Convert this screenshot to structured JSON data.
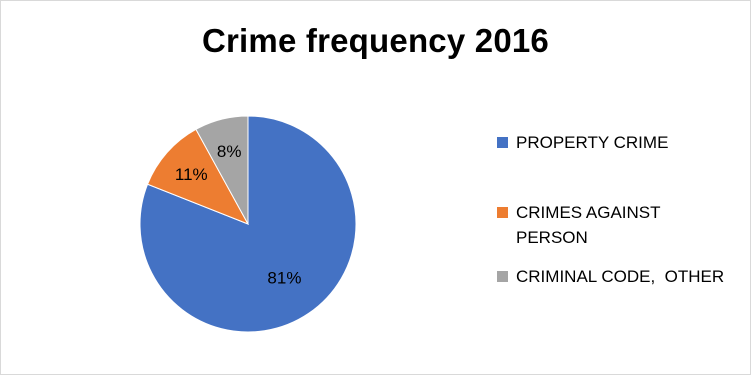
{
  "chart_data": {
    "type": "pie",
    "title": "Crime frequency 2016",
    "legend_position": "right",
    "slices": [
      {
        "label": "PROPERTY CRIME",
        "value": 81,
        "value_label": "81%",
        "color": "#4472C4"
      },
      {
        "label": "CRIMES AGAINST PERSON",
        "value": 11,
        "value_label": "11%",
        "color": "#ED7D31"
      },
      {
        "label": "CRIMINAL CODE,  OTHER",
        "value": 8,
        "value_label": "8%",
        "color": "#A5A5A5"
      }
    ]
  }
}
